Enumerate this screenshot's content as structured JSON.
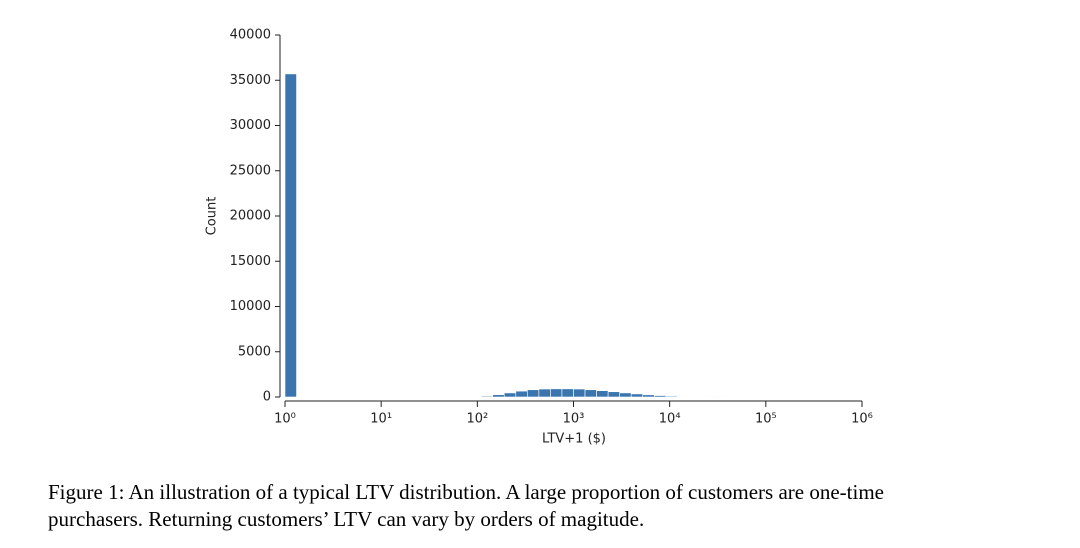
{
  "chart_data": {
    "type": "histogram",
    "xlabel": "LTV+1 ($)",
    "ylabel": "Count",
    "bins": [
      1,
      1.318,
      1.738,
      2.291,
      3.02,
      3.981,
      5.248,
      6.918,
      9.12,
      12.02,
      15.85,
      20.89,
      27.54,
      36.31,
      47.86,
      63.1,
      83.18,
      109.6,
      144.5,
      190.5,
      251.2,
      331.1,
      436.5,
      575.4,
      758.6,
      1000,
      1318,
      1738,
      2291,
      3020,
      3981,
      5248,
      6918,
      9120,
      12023,
      15849,
      20893,
      27542,
      36308,
      47863,
      63096,
      83176,
      109648,
      144544,
      190546,
      251189,
      331131,
      436516,
      575440,
      758578,
      1000000
    ],
    "values": [
      35700,
      0,
      0,
      0,
      0,
      0,
      0,
      0,
      0,
      0,
      0,
      0,
      0,
      0,
      0,
      20,
      50,
      100,
      250,
      450,
      650,
      800,
      880,
      900,
      900,
      880,
      800,
      700,
      580,
      450,
      340,
      240,
      160,
      100,
      60,
      30,
      15,
      8,
      4,
      2,
      1,
      0,
      0,
      0,
      0,
      0,
      0,
      0,
      0,
      0
    ],
    "color": "#3a75ae",
    "xscale": "log",
    "xlim": [
      1,
      1000000
    ],
    "xticks": [
      {
        "value": 1,
        "label": "10⁰"
      },
      {
        "value": 10,
        "label": "10¹"
      },
      {
        "value": 100,
        "label": "10²"
      },
      {
        "value": 1000,
        "label": "10³"
      },
      {
        "value": 10000,
        "label": "10⁴"
      },
      {
        "value": 100000,
        "label": "10⁵"
      },
      {
        "value": 1000000,
        "label": "10⁶"
      }
    ],
    "ylim": [
      0,
      40000
    ],
    "yticks": [
      0,
      5000,
      10000,
      15000,
      20000,
      25000,
      30000,
      35000,
      40000
    ],
    "caption": [
      "Figure 1: An illustration of a typical LTV distribution. A large proportion of customers are one-time",
      "purchasers. Returning customers’ LTV can vary by orders of magitude."
    ]
  }
}
